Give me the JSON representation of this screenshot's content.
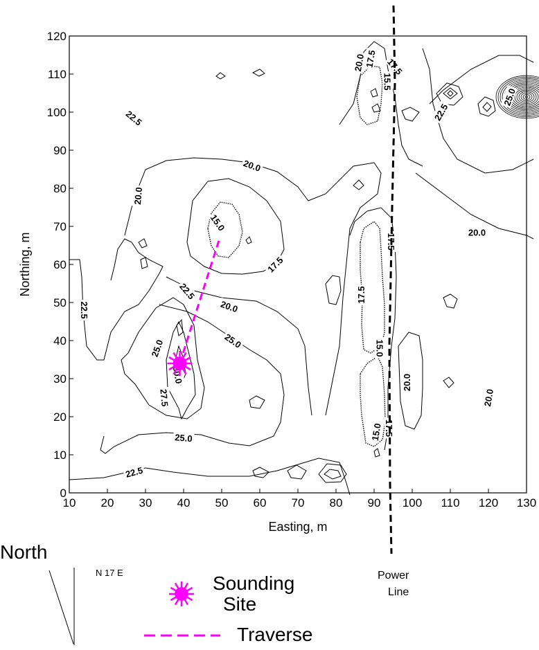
{
  "map": {
    "x_axis": {
      "label": "Easting, m",
      "min": 10,
      "max": 130,
      "ticks": [
        10,
        20,
        30,
        40,
        50,
        60,
        70,
        80,
        90,
        100,
        110,
        120,
        130
      ]
    },
    "y_axis": {
      "label": "Northing, m",
      "min": 0,
      "max": 120,
      "ticks": [
        0,
        10,
        20,
        30,
        40,
        50,
        60,
        70,
        80,
        90,
        100,
        110,
        120
      ]
    },
    "contour_labels": [
      {
        "text": "22.5",
        "x": 27,
        "y": 98.5,
        "rotate": 40
      },
      {
        "text": "20.0",
        "x": 58,
        "y": 86,
        "rotate": 20
      },
      {
        "text": "20.0",
        "x": 28,
        "y": 78,
        "rotate": -85
      },
      {
        "text": "15.0",
        "x": 49,
        "y": 71,
        "rotate": 55
      },
      {
        "text": "17.5",
        "x": 64,
        "y": 60,
        "rotate": -45
      },
      {
        "text": "22.5",
        "x": 41,
        "y": 53,
        "rotate": 50
      },
      {
        "text": "20.0",
        "x": 52,
        "y": 49,
        "rotate": 20
      },
      {
        "text": "22.5",
        "x": 14,
        "y": 48,
        "rotate": 90
      },
      {
        "text": "25.0",
        "x": 33,
        "y": 38,
        "rotate": -70
      },
      {
        "text": "25.0",
        "x": 53,
        "y": 40,
        "rotate": 35
      },
      {
        "text": "30.0",
        "x": 38.5,
        "y": 31,
        "rotate": 80
      },
      {
        "text": "27.5",
        "x": 35,
        "y": 25,
        "rotate": 85
      },
      {
        "text": "25.0",
        "x": 40,
        "y": 14.5,
        "rotate": 5
      },
      {
        "text": "22.5",
        "x": 27,
        "y": 5.5,
        "rotate": -15
      },
      {
        "text": "17.5",
        "x": 86.5,
        "y": 52,
        "rotate": -90
      },
      {
        "text": "15.0",
        "x": 91.5,
        "y": 38,
        "rotate": 90
      },
      {
        "text": "15.0",
        "x": 90.5,
        "y": 16,
        "rotate": -80
      },
      {
        "text": "20.0",
        "x": 98.5,
        "y": 29,
        "rotate": -90
      },
      {
        "text": "20.0",
        "x": 120,
        "y": 25,
        "rotate": -80
      },
      {
        "text": "20.0",
        "x": 117,
        "y": 68.5,
        "rotate": 0
      },
      {
        "text": "17.5",
        "x": 94.5,
        "y": 66,
        "rotate": 90
      },
      {
        "text": "17.5",
        "x": 94,
        "y": 17,
        "rotate": 90
      },
      {
        "text": "20.0",
        "x": 86,
        "y": 113,
        "rotate": -80
      },
      {
        "text": "17.5",
        "x": 89,
        "y": 114,
        "rotate": -80
      },
      {
        "text": "15.5",
        "x": 93.5,
        "y": 108,
        "rotate": 90
      },
      {
        "text": "17.5",
        "x": 95.5,
        "y": 112,
        "rotate": 50
      },
      {
        "text": "22.5",
        "x": 107.5,
        "y": 100,
        "rotate": -60
      },
      {
        "text": "25.0",
        "x": 125.5,
        "y": 104,
        "rotate": -70
      }
    ],
    "power_line_label_line1": "Power",
    "power_line_label_line2": "Line",
    "sounding_site": {
      "x": 39,
      "y": 34,
      "color": "#ff00ff"
    },
    "traverse": {
      "from": [
        39,
        34
      ],
      "to": [
        49.5,
        67
      ],
      "color": "#ff00ff"
    }
  },
  "legend": {
    "north_label": "North",
    "bearing_label": "N 17 E",
    "sounding_site_label_line1": "Sounding",
    "sounding_site_label_line2": "Site",
    "traverse_label": "Traverse"
  }
}
